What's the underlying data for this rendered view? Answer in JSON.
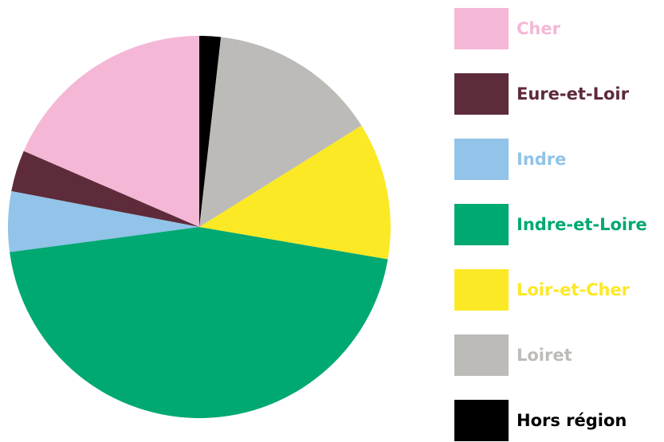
{
  "chart_data": {
    "type": "pie",
    "categories": [
      "Cher",
      "Eure-et-Loir",
      "Indre",
      "Indre-et-Loire",
      "Loir-et-Cher",
      "Loiret",
      "Hors région"
    ],
    "values": [
      18.5,
      3.5,
      5.1,
      45.2,
      11.6,
      14.3,
      1.8
    ],
    "colors": [
      "#f4b8d6",
      "#5e2b3a",
      "#92c3e8",
      "#00a872",
      "#fbe925",
      "#bdbbb8",
      "#000000"
    ],
    "legend": "right"
  }
}
